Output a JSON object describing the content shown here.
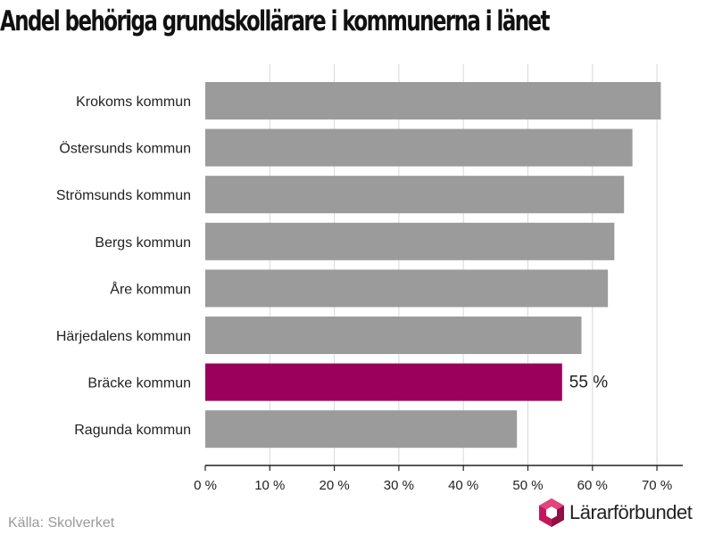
{
  "title": "Andel behöriga grundskollärare i kommunerna i länet",
  "source": "Källa: Skolverket",
  "logo": {
    "text": "Lärarförbundet"
  },
  "colors": {
    "bar": "#9b9b9b",
    "highlight": "#9b005c",
    "grid": "#d8d8d8",
    "axis": "#222222",
    "logo_mark": "#c2185b"
  },
  "chart_data": {
    "type": "bar",
    "orientation": "horizontal",
    "categories": [
      "Krokoms kommun",
      "Östersunds kommun",
      "Strömsunds kommun",
      "Bergs kommun",
      "Åre kommun",
      "Härjedalens kommun",
      "Bräcke kommun",
      "Ragunda kommun"
    ],
    "values": [
      70.6,
      66.2,
      64.9,
      63.4,
      62.4,
      58.3,
      55.3,
      48.3
    ],
    "highlight_index": 6,
    "data_labels": [
      {
        "index": 6,
        "text": "55 %"
      }
    ],
    "xlim": [
      0,
      74
    ],
    "xticks": [
      0,
      10,
      20,
      30,
      40,
      50,
      60,
      70
    ],
    "xtick_labels": [
      "0 %",
      "10 %",
      "20 %",
      "30 %",
      "40 %",
      "50 %",
      "60 %",
      "70 %"
    ],
    "grid": true
  }
}
